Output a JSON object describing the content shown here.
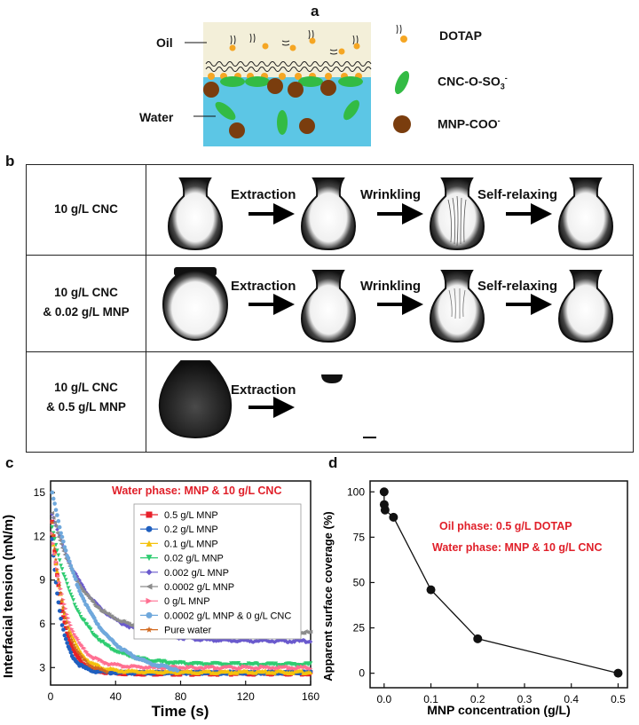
{
  "panel_a": {
    "label": "a",
    "oil_label": "Oil",
    "water_label": "Water",
    "legend": [
      {
        "name": "DOTAP",
        "color": "#f5a623"
      },
      {
        "name": "CNC-O-SO",
        "sub": "3",
        "sup": "-",
        "color": "#33bb44"
      },
      {
        "name": "MNP-COO",
        "sup": "-",
        "color": "#7a3d0e"
      }
    ],
    "colors": {
      "oil": "#f3efd9",
      "water": "#5cc6e5"
    }
  },
  "panel_b": {
    "label": "b",
    "rows": [
      {
        "name_lines": [
          "10 g/L CNC"
        ],
        "steps": [
          "Extraction",
          "Wrinkling",
          "Self-relaxing"
        ]
      },
      {
        "name_lines": [
          "10 g/L CNC",
          "& 0.02 g/L MNP"
        ],
        "steps": [
          "Extraction",
          "Wrinkling",
          "Self-relaxing"
        ]
      },
      {
        "name_lines": [
          "10 g/L CNC",
          "& 0.5 g/L MNP"
        ],
        "steps": [
          "Extraction"
        ]
      }
    ]
  },
  "panel_c": {
    "label": "c",
    "annotation": "Water phase: MNP & 10 g/L CNC",
    "chart_data": {
      "type": "scatter",
      "xlabel": "Time (s)",
      "ylabel": "Interfacial tension (mN/m)",
      "xlim": [
        0,
        160
      ],
      "ylim": [
        1.8,
        15.8
      ],
      "xticks": [
        0,
        40,
        80,
        120,
        160
      ],
      "yticks": [
        3,
        6,
        9,
        12,
        15
      ],
      "series": [
        {
          "name": "0.5 g/L MNP",
          "color": "#e8202a",
          "marker": "square",
          "y0": 13,
          "plateau": 2.6,
          "tau": 7,
          "tend": 160
        },
        {
          "name": "0.2 g/L MNP",
          "color": "#1f5fbf",
          "marker": "circle",
          "y0": 11.8,
          "plateau": 2.65,
          "tau": 6,
          "tend": 160
        },
        {
          "name": "0.1 g/L MNP",
          "color": "#f4c20d",
          "marker": "triangle",
          "y0": 12.3,
          "plateau": 2.7,
          "tau": 9,
          "tend": 160
        },
        {
          "name": "0.02 g/L MNP",
          "color": "#2ecc71",
          "marker": "triangle-down",
          "y0": 12.6,
          "plateau": 3.2,
          "tau": 17,
          "tend": 160
        },
        {
          "name": "0.002 g/L MNP",
          "color": "#6a5acd",
          "marker": "diamond",
          "y0": 13.6,
          "plateau": 4.8,
          "tau": 22,
          "tend": 160
        },
        {
          "name": "0.0002 g/L MNP",
          "color": "#8c8c8c",
          "marker": "triangle-left",
          "y0": 13.6,
          "plateau": 5.4,
          "tau": 18,
          "tend": 160
        },
        {
          "name": "0 g/L MNP",
          "color": "#ff6f91",
          "marker": "triangle-right",
          "y0": 12.2,
          "plateau": 3.0,
          "tau": 10,
          "tend": 160
        },
        {
          "name": "0.0002 g/L MNP & 0 g/L CNC",
          "color": "#6fa8dc",
          "marker": "hexagon",
          "y0": 15,
          "plateau": 2.5,
          "tau": 22,
          "tend": 78
        },
        {
          "name": "Pure water",
          "color": "#d2691e",
          "marker": "star",
          "y0": 13,
          "plateau": 2.6,
          "tau": 8,
          "tend": 35
        }
      ]
    }
  },
  "panel_d": {
    "label": "d",
    "annotation_oil": "Oil phase: 0.5 g/L DOTAP",
    "annotation_water": "Water phase: MNP & 10 g/L CNC",
    "chart_data": {
      "type": "line",
      "xlabel": "MNP concentration (g/L)",
      "ylabel": "Apparent surface coverage (%)",
      "xlim": [
        -0.03,
        0.52
      ],
      "ylim": [
        -8,
        106
      ],
      "xticks": [
        0.0,
        0.1,
        0.2,
        0.3,
        0.4,
        0.5
      ],
      "yticks": [
        0,
        25,
        50,
        75,
        100
      ],
      "x": [
        0,
        0.0002,
        0.002,
        0.02,
        0.1,
        0.2,
        0.5
      ],
      "y": [
        100,
        93,
        90,
        86,
        46,
        19,
        0
      ]
    }
  }
}
